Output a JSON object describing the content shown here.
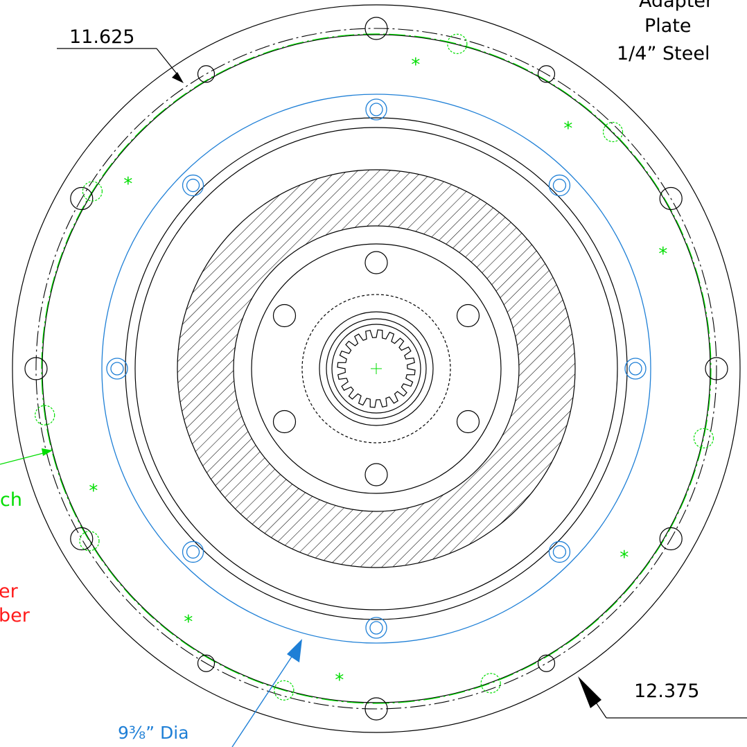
{
  "labels": {
    "adapter_line1": "Adapter",
    "adapter_line2": "Plate",
    "adapter_line3": "1/4” Steel",
    "dim_top": "11.625",
    "dim_bottom": "12.375",
    "blue_dia": "9³⁄₈” Dia",
    "green_partial": "ch",
    "red_partial_1": "er",
    "red_partial_2": "ber",
    "star": "*"
  },
  "colors": {
    "outline": "#000000",
    "bolt_circle": "#00dd00",
    "blue_circle": "#1e7fd6",
    "red_text": "#ff1a1a",
    "hatch": "#000000"
  }
}
